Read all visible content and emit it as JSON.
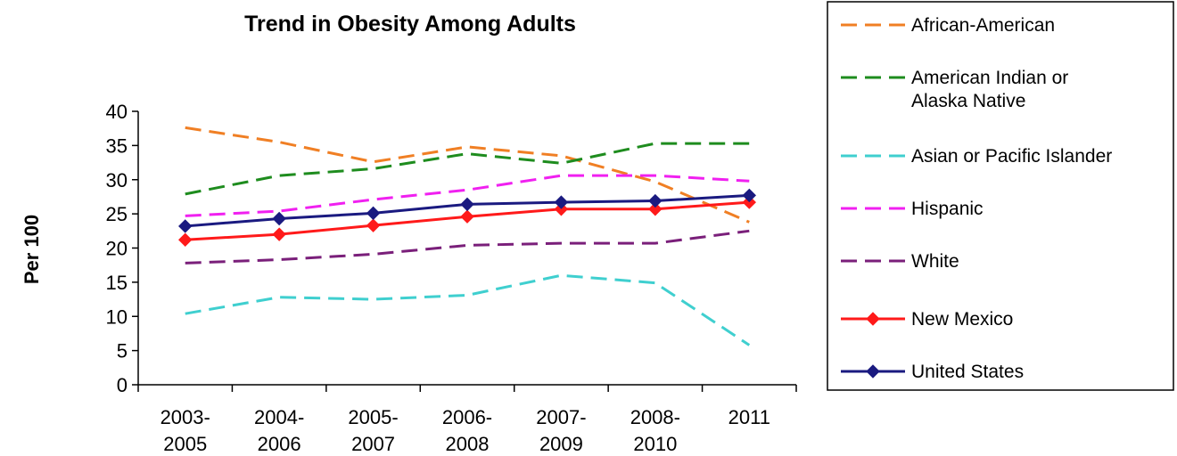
{
  "chart_data": {
    "type": "line",
    "title": "Trend in Obesity Among Adults",
    "ylabel": "Per 100",
    "xlabel": "",
    "ylim": [
      0,
      40
    ],
    "yticks": [
      0,
      5,
      10,
      15,
      20,
      25,
      30,
      35,
      40
    ],
    "categories": [
      [
        "2003-",
        "2005"
      ],
      [
        "2004-",
        "2006"
      ],
      [
        "2005-",
        "2007"
      ],
      [
        "2006-",
        "2008"
      ],
      [
        "2007-",
        "2009"
      ],
      [
        "2008-",
        "2010"
      ],
      [
        "2011",
        ""
      ]
    ],
    "grid": false,
    "legend_position": "right",
    "series": [
      {
        "name": "African-American",
        "color": "#F07F24",
        "style": "dashed",
        "marker": "none",
        "values": [
          37.6,
          35.5,
          32.6,
          34.8,
          33.5,
          29.7,
          23.8
        ]
      },
      {
        "name": [
          "American Indian or",
          "Alaska Native"
        ],
        "color": "#1E8C1E",
        "style": "dashed",
        "marker": "none",
        "values": [
          27.9,
          30.6,
          31.6,
          33.8,
          32.4,
          35.3,
          35.3
        ]
      },
      {
        "name": "Asian or Pacific Islander",
        "color": "#3FCFCF",
        "style": "dashed",
        "marker": "none",
        "values": [
          10.4,
          12.8,
          12.5,
          13.1,
          16.0,
          14.9,
          5.8
        ]
      },
      {
        "name": "Hispanic",
        "color": "#F020F0",
        "style": "dashed",
        "marker": "none",
        "values": [
          24.7,
          25.4,
          27.1,
          28.5,
          30.6,
          30.6,
          29.8
        ]
      },
      {
        "name": "White",
        "color": "#7A1F7A",
        "style": "dashed",
        "marker": "none",
        "values": [
          17.8,
          18.3,
          19.1,
          20.4,
          20.7,
          20.7,
          22.5
        ]
      },
      {
        "name": "New Mexico",
        "color": "#FF1A1A",
        "style": "solid",
        "marker": "diamond",
        "values": [
          21.2,
          22.0,
          23.3,
          24.6,
          25.7,
          25.7,
          26.7
        ]
      },
      {
        "name": "United States",
        "color": "#1A1A80",
        "style": "solid",
        "marker": "diamond",
        "values": [
          23.2,
          24.3,
          25.1,
          26.4,
          26.7,
          26.9,
          27.7
        ]
      }
    ]
  }
}
